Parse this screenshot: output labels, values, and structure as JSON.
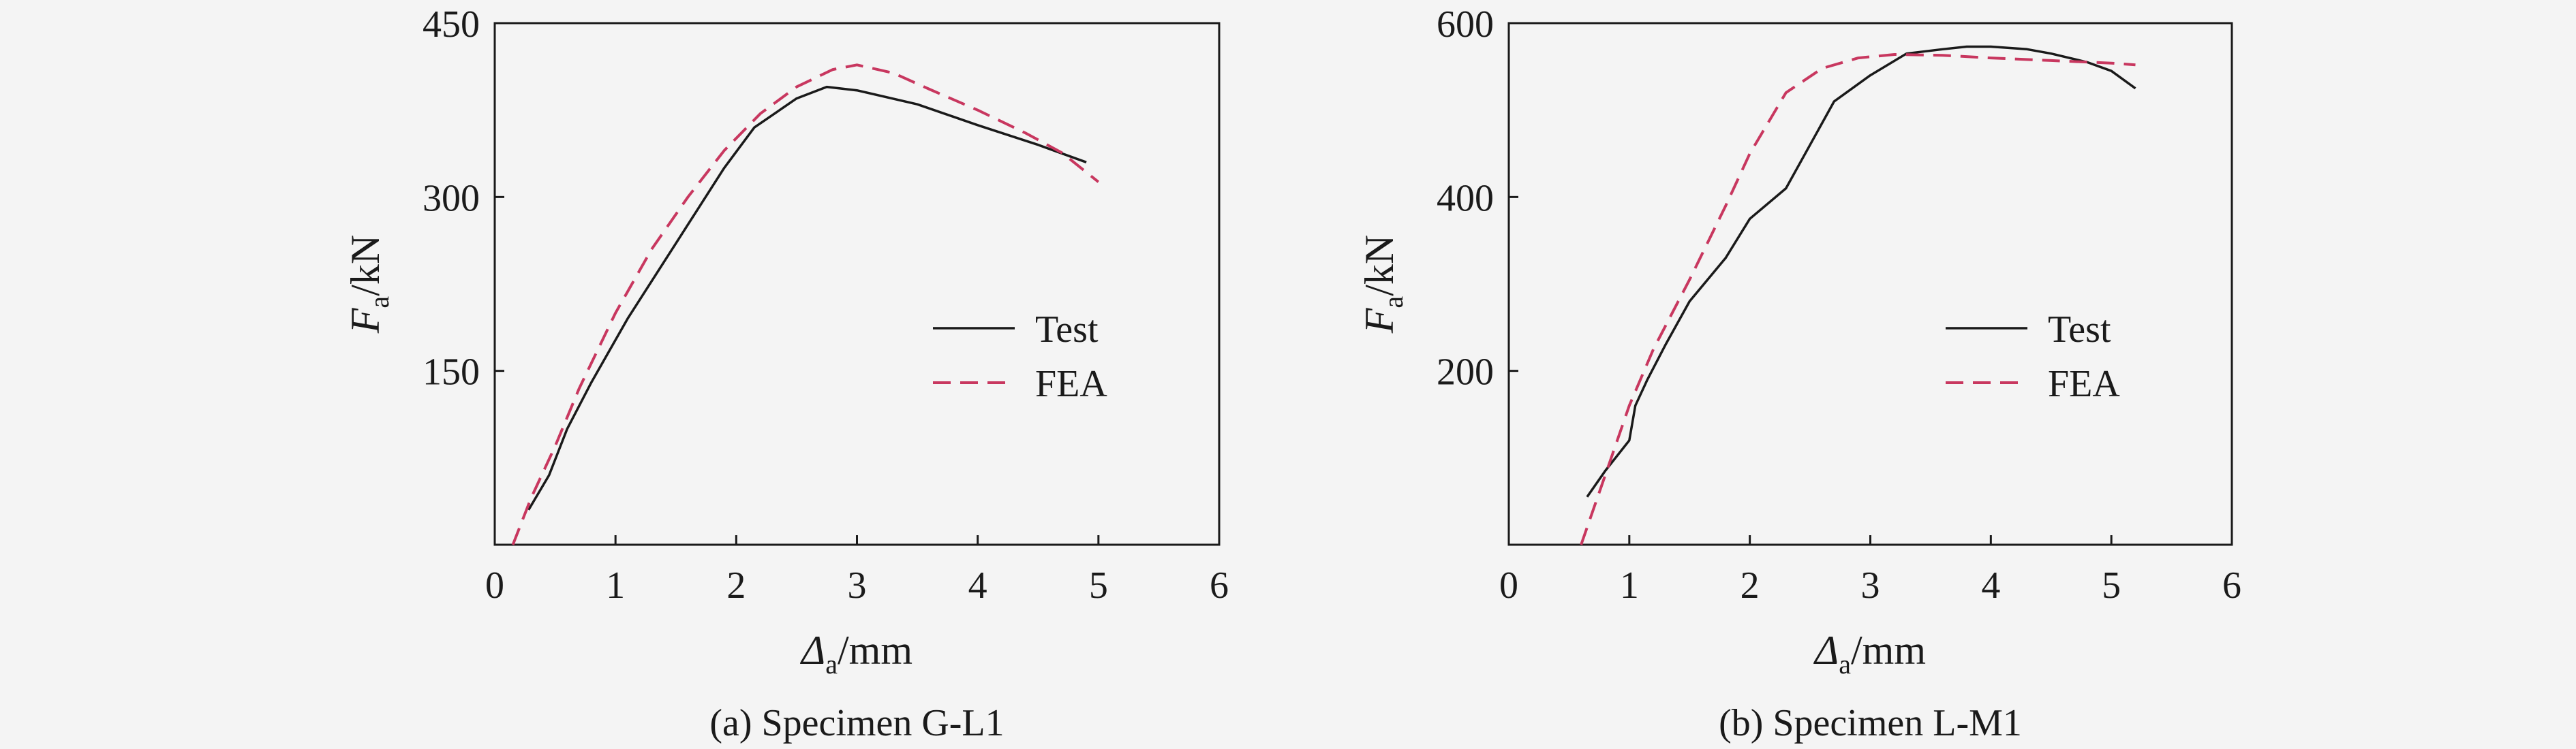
{
  "colors": {
    "test": "#1a1a1a",
    "fea": "#c8375f",
    "background": "#f4f4f4",
    "axis": "#1a1a1a"
  },
  "chart_data": [
    {
      "type": "line",
      "caption": "(a) Specimen G-L1",
      "xlabel": {
        "symbol": "Δ",
        "sub": "a",
        "unit": "/mm"
      },
      "ylabel": {
        "symbol": "F",
        "sub": "a",
        "unit": "/kN"
      },
      "xlim": [
        0,
        6
      ],
      "ylim": [
        0,
        450
      ],
      "xticks": [
        0,
        1,
        2,
        3,
        4,
        5,
        6
      ],
      "yticks": [
        150,
        300,
        450
      ],
      "legend_position": "center-right",
      "series": [
        {
          "name": "Test",
          "style": "solid",
          "x": [
            0.28,
            0.45,
            0.6,
            0.8,
            1.1,
            1.5,
            1.9,
            2.15,
            2.5,
            2.75,
            3.0,
            3.5,
            4.0,
            4.5,
            4.9
          ],
          "y": [
            30,
            60,
            100,
            140,
            195,
            260,
            325,
            360,
            385,
            395,
            392,
            380,
            362,
            345,
            330
          ]
        },
        {
          "name": "FEA",
          "style": "dashed",
          "x": [
            0.15,
            0.3,
            0.5,
            0.7,
            1.0,
            1.3,
            1.6,
            1.9,
            2.2,
            2.5,
            2.8,
            3.0,
            3.3,
            3.6,
            4.0,
            4.4,
            4.7,
            5.0
          ],
          "y": [
            0,
            40,
            85,
            135,
            200,
            255,
            300,
            340,
            372,
            395,
            410,
            414,
            407,
            393,
            375,
            355,
            338,
            313
          ]
        }
      ]
    },
    {
      "type": "line",
      "caption": "(b) Specimen L-M1",
      "xlabel": {
        "symbol": "Δ",
        "sub": "a",
        "unit": "/mm"
      },
      "ylabel": {
        "symbol": "F",
        "sub": "a",
        "unit": "/kN"
      },
      "xlim": [
        0,
        6
      ],
      "ylim": [
        0,
        600
      ],
      "xticks": [
        0,
        1,
        2,
        3,
        4,
        5,
        6
      ],
      "yticks": [
        200,
        400,
        600
      ],
      "legend_position": "center-right",
      "series": [
        {
          "name": "Test",
          "style": "solid",
          "x": [
            0.65,
            0.8,
            1.0,
            1.05,
            1.15,
            1.3,
            1.5,
            1.8,
            2.0,
            2.3,
            2.5,
            2.7,
            3.0,
            3.3,
            3.6,
            3.8,
            4.0,
            4.3,
            4.5,
            4.8,
            5.0,
            5.2
          ],
          "y": [
            55,
            85,
            120,
            160,
            190,
            230,
            280,
            330,
            375,
            410,
            460,
            510,
            540,
            565,
            570,
            573,
            573,
            570,
            565,
            555,
            545,
            525
          ]
        },
        {
          "name": "FEA",
          "style": "dashed",
          "x": [
            0.6,
            0.8,
            1.0,
            1.2,
            1.5,
            1.8,
            2.0,
            2.3,
            2.6,
            2.9,
            3.2,
            3.6,
            4.0,
            4.5,
            5.0,
            5.2
          ],
          "y": [
            0,
            80,
            160,
            225,
            305,
            390,
            450,
            520,
            548,
            560,
            564,
            563,
            560,
            557,
            554,
            552
          ]
        }
      ]
    }
  ]
}
